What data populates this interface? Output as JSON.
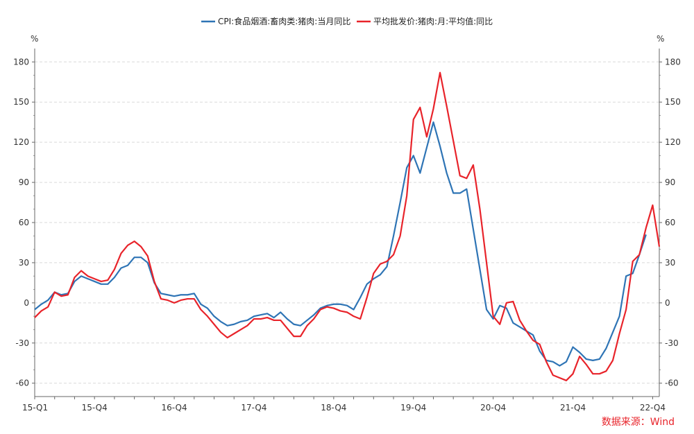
{
  "chart_data": {
    "type": "line",
    "y_unit_left": "%",
    "y_unit_right": "%",
    "ylim": [
      -70,
      190
    ],
    "yticks": [
      180,
      150,
      120,
      90,
      60,
      30,
      0,
      -30,
      -60
    ],
    "ytick_labels": [
      "180",
      "150",
      "120",
      "90",
      "60",
      "30",
      "0",
      "-30",
      "-60"
    ],
    "x_labels": [
      {
        "label": "15-Q1",
        "index": 0
      },
      {
        "label": "15-Q4",
        "index": 9
      },
      {
        "label": "16-Q4",
        "index": 21
      },
      {
        "label": "17-Q4",
        "index": 33
      },
      {
        "label": "18-Q4",
        "index": 45
      },
      {
        "label": "19-Q4",
        "index": 57
      },
      {
        "label": "20-Q4",
        "index": 69
      },
      {
        "label": "21-Q4",
        "index": 81
      },
      {
        "label": "22-Q4",
        "index": 93
      }
    ],
    "grid": true,
    "legend_position": "top-center",
    "series": [
      {
        "name": "CPI:食品烟酒:畜肉类:猪肉:当月同比",
        "color": "#2e74b5",
        "values": [
          -5,
          -1,
          2,
          8,
          6,
          7,
          16,
          20,
          18,
          16,
          14,
          14,
          19,
          26,
          28,
          34,
          34,
          30,
          15,
          7,
          6,
          5,
          6,
          6,
          7,
          -1,
          -4,
          -10,
          -14,
          -17,
          -16,
          -14,
          -13,
          -10,
          -9,
          -8,
          -11,
          -7,
          -12,
          -16,
          -17,
          -13,
          -9,
          -4,
          -2,
          -1,
          -1,
          -2,
          -5,
          4,
          14,
          18,
          21,
          27,
          50,
          75,
          101,
          110,
          97,
          116,
          135,
          117,
          97,
          82,
          82,
          85,
          55,
          25,
          -5,
          -12,
          -2,
          -4,
          -15,
          -18,
          -21,
          -24,
          -36,
          -43,
          -44,
          -47,
          -44,
          -33,
          -37,
          -42,
          -43,
          -42,
          -34,
          -22,
          -10,
          20,
          22,
          36,
          51,
          null
        ],
        "last_index": 92
      },
      {
        "name": "平均批发价:猪肉:月:平均值:同比",
        "color": "#e8232a",
        "values": [
          -11,
          -6,
          -3,
          8,
          5,
          6,
          19,
          24,
          20,
          18,
          16,
          17,
          25,
          37,
          43,
          46,
          42,
          35,
          16,
          3,
          2,
          0,
          2,
          3,
          3,
          -5,
          -10,
          -16,
          -22,
          -26,
          -23,
          -20,
          -17,
          -12,
          -12,
          -11,
          -13,
          -13,
          -19,
          -25,
          -25,
          -17,
          -12,
          -5,
          -3,
          -4,
          -6,
          -7,
          -10,
          -12,
          4,
          22,
          29,
          31,
          36,
          50,
          80,
          137,
          146,
          124,
          145,
          172,
          147,
          121,
          95,
          93,
          103,
          70,
          30,
          -10,
          -16,
          0,
          1,
          -13,
          -21,
          -28,
          -31,
          -44,
          -54,
          -56,
          -58,
          -53,
          -40,
          -46,
          -53,
          -53,
          -51,
          -43,
          -23,
          -5,
          31,
          36,
          56,
          73,
          42
        ]
      }
    ]
  },
  "legend": {
    "series1_label": "CPI:食品烟酒:畜肉类:猪肉:当月同比",
    "series2_label": "平均批发价:猪肉:月:平均值:同比"
  },
  "source_text": "数据来源：Wind"
}
